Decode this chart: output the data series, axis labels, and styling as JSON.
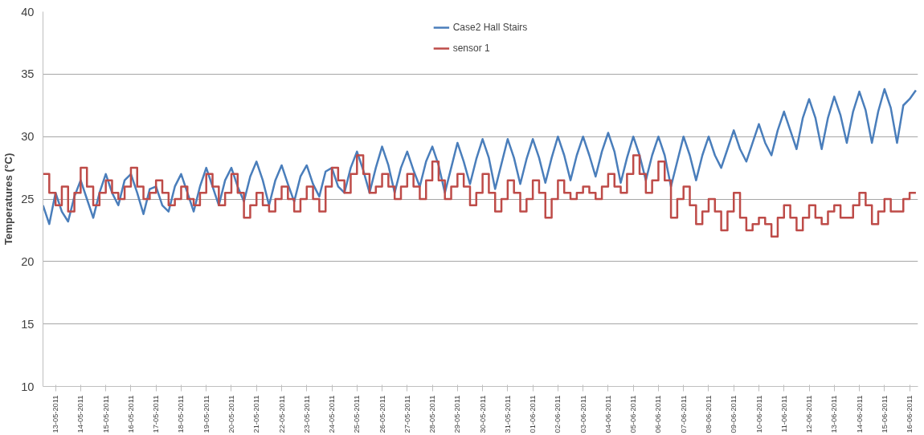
{
  "chart_data": {
    "type": "line",
    "ylabel": "Temperatures (°C)",
    "ylim": [
      10,
      40
    ],
    "yticks": [
      10,
      15,
      20,
      25,
      30,
      35,
      40
    ],
    "xlim": [
      "2011-05-13T00:00",
      "2011-06-16T20:00"
    ],
    "xticks": [
      {
        "value": "2011-05-13T12:00",
        "label": "13-05-2011"
      },
      {
        "value": "2011-05-14T12:00",
        "label": "14-05-2011"
      },
      {
        "value": "2011-05-15T12:00",
        "label": "15-05-2011"
      },
      {
        "value": "2011-05-16T12:00",
        "label": "16-05-2011"
      },
      {
        "value": "2011-05-17T12:00",
        "label": "17-05-2011"
      },
      {
        "value": "2011-05-18T12:00",
        "label": "18-05-2011"
      },
      {
        "value": "2011-05-19T12:00",
        "label": "19-05-2011"
      },
      {
        "value": "2011-05-20T12:00",
        "label": "20-05-2011"
      },
      {
        "value": "2011-05-21T12:00",
        "label": "21-05-2011"
      },
      {
        "value": "2011-05-22T12:00",
        "label": "22-05-2011"
      },
      {
        "value": "2011-05-23T12:00",
        "label": "23-05-2011"
      },
      {
        "value": "2011-05-24T12:00",
        "label": "24-05-2011"
      },
      {
        "value": "2011-05-25T12:00",
        "label": "25-05-2011"
      },
      {
        "value": "2011-05-26T12:00",
        "label": "26-05-2011"
      },
      {
        "value": "2011-05-27T12:00",
        "label": "27-05-2011"
      },
      {
        "value": "2011-05-28T12:00",
        "label": "28-05-2011"
      },
      {
        "value": "2011-05-29T12:00",
        "label": "29-05-2011"
      },
      {
        "value": "2011-05-30T12:00",
        "label": "30-05-2011"
      },
      {
        "value": "2011-05-31T12:00",
        "label": "31-05-2011"
      },
      {
        "value": "2011-06-01T12:00",
        "label": "01-06-2011"
      },
      {
        "value": "2011-06-02T12:00",
        "label": "02-06-2011"
      },
      {
        "value": "2011-06-03T12:00",
        "label": "03-06-2011"
      },
      {
        "value": "2011-06-04T12:00",
        "label": "04-06-2011"
      },
      {
        "value": "2011-06-05T12:00",
        "label": "05-06-2011"
      },
      {
        "value": "2011-06-06T12:00",
        "label": "06-06-2011"
      },
      {
        "value": "2011-06-07T12:00",
        "label": "07-06-2011"
      },
      {
        "value": "2011-06-08T12:00",
        "label": "08-06-2011"
      },
      {
        "value": "2011-06-09T12:00",
        "label": "09-06-2011"
      },
      {
        "value": "2011-06-10T12:00",
        "label": "10-06-2011"
      },
      {
        "value": "2011-06-11T12:00",
        "label": "11-06-2011"
      },
      {
        "value": "2011-06-12T12:00",
        "label": "12-06-2011"
      },
      {
        "value": "2011-06-13T12:00",
        "label": "13-06-2011"
      },
      {
        "value": "2011-06-14T12:00",
        "label": "14-06-2011"
      },
      {
        "value": "2011-06-15T12:00",
        "label": "15-06-2011"
      },
      {
        "value": "2011-06-16T12:00",
        "label": "16-06-2011"
      }
    ],
    "x": [
      "2011-05-13T00:00",
      "2011-05-13T06:00",
      "2011-05-13T12:00",
      "2011-05-13T18:00",
      "2011-05-14T00:00",
      "2011-05-14T06:00",
      "2011-05-14T12:00",
      "2011-05-14T18:00",
      "2011-05-15T00:00",
      "2011-05-15T06:00",
      "2011-05-15T12:00",
      "2011-05-15T18:00",
      "2011-05-16T00:00",
      "2011-05-16T06:00",
      "2011-05-16T12:00",
      "2011-05-16T18:00",
      "2011-05-17T00:00",
      "2011-05-17T06:00",
      "2011-05-17T12:00",
      "2011-05-17T18:00",
      "2011-05-18T00:00",
      "2011-05-18T06:00",
      "2011-05-18T12:00",
      "2011-05-18T18:00",
      "2011-05-19T00:00",
      "2011-05-19T06:00",
      "2011-05-19T12:00",
      "2011-05-19T18:00",
      "2011-05-20T00:00",
      "2011-05-20T06:00",
      "2011-05-20T12:00",
      "2011-05-20T18:00",
      "2011-05-21T00:00",
      "2011-05-21T06:00",
      "2011-05-21T12:00",
      "2011-05-21T18:00",
      "2011-05-22T00:00",
      "2011-05-22T06:00",
      "2011-05-22T12:00",
      "2011-05-22T18:00",
      "2011-05-23T00:00",
      "2011-05-23T06:00",
      "2011-05-23T12:00",
      "2011-05-23T18:00",
      "2011-05-24T00:00",
      "2011-05-24T06:00",
      "2011-05-24T12:00",
      "2011-05-24T18:00",
      "2011-05-25T00:00",
      "2011-05-25T06:00",
      "2011-05-25T12:00",
      "2011-05-25T18:00",
      "2011-05-26T00:00",
      "2011-05-26T06:00",
      "2011-05-26T12:00",
      "2011-05-26T18:00",
      "2011-05-27T00:00",
      "2011-05-27T06:00",
      "2011-05-27T12:00",
      "2011-05-27T18:00",
      "2011-05-28T00:00",
      "2011-05-28T06:00",
      "2011-05-28T12:00",
      "2011-05-28T18:00",
      "2011-05-29T00:00",
      "2011-05-29T06:00",
      "2011-05-29T12:00",
      "2011-05-29T18:00",
      "2011-05-30T00:00",
      "2011-05-30T06:00",
      "2011-05-30T12:00",
      "2011-05-30T18:00",
      "2011-05-31T00:00",
      "2011-05-31T06:00",
      "2011-05-31T12:00",
      "2011-05-31T18:00",
      "2011-06-01T00:00",
      "2011-06-01T06:00",
      "2011-06-01T12:00",
      "2011-06-01T18:00",
      "2011-06-02T00:00",
      "2011-06-02T06:00",
      "2011-06-02T12:00",
      "2011-06-02T18:00",
      "2011-06-03T00:00",
      "2011-06-03T06:00",
      "2011-06-03T12:00",
      "2011-06-03T18:00",
      "2011-06-04T00:00",
      "2011-06-04T06:00",
      "2011-06-04T12:00",
      "2011-06-04T18:00",
      "2011-06-05T00:00",
      "2011-06-05T06:00",
      "2011-06-05T12:00",
      "2011-06-05T18:00",
      "2011-06-06T00:00",
      "2011-06-06T06:00",
      "2011-06-06T12:00",
      "2011-06-06T18:00",
      "2011-06-07T00:00",
      "2011-06-07T06:00",
      "2011-06-07T12:00",
      "2011-06-07T18:00",
      "2011-06-08T00:00",
      "2011-06-08T06:00",
      "2011-06-08T12:00",
      "2011-06-08T18:00",
      "2011-06-09T00:00",
      "2011-06-09T06:00",
      "2011-06-09T12:00",
      "2011-06-09T18:00",
      "2011-06-10T00:00",
      "2011-06-10T06:00",
      "2011-06-10T12:00",
      "2011-06-10T18:00",
      "2011-06-11T00:00",
      "2011-06-11T06:00",
      "2011-06-11T12:00",
      "2011-06-11T18:00",
      "2011-06-12T00:00",
      "2011-06-12T06:00",
      "2011-06-12T12:00",
      "2011-06-12T18:00",
      "2011-06-13T00:00",
      "2011-06-13T06:00",
      "2011-06-13T12:00",
      "2011-06-13T18:00",
      "2011-06-14T00:00",
      "2011-06-14T06:00",
      "2011-06-14T12:00",
      "2011-06-14T18:00",
      "2011-06-15T00:00",
      "2011-06-15T06:00",
      "2011-06-15T12:00",
      "2011-06-15T18:00",
      "2011-06-16T00:00",
      "2011-06-16T06:00",
      "2011-06-16T12:00",
      "2011-06-16T18:00"
    ],
    "series": [
      {
        "name": "Case2 Hall Stairs",
        "color": "#4a7ebb",
        "values": [
          24.5,
          23.0,
          25.5,
          24.0,
          23.2,
          25.2,
          26.5,
          25.0,
          23.5,
          25.5,
          27.0,
          25.5,
          24.5,
          26.5,
          27.0,
          25.5,
          23.8,
          25.8,
          26.0,
          24.5,
          24.0,
          26.0,
          27.0,
          25.5,
          24.0,
          26.0,
          27.5,
          26.0,
          24.5,
          26.5,
          27.5,
          26.0,
          24.8,
          26.8,
          28.0,
          26.5,
          24.5,
          26.5,
          27.7,
          26.2,
          24.8,
          26.8,
          27.7,
          26.2,
          25.2,
          27.2,
          27.5,
          26.0,
          25.5,
          27.5,
          28.8,
          27.3,
          25.5,
          27.5,
          29.2,
          27.7,
          25.5,
          27.5,
          28.8,
          27.3,
          26.0,
          28.0,
          29.2,
          27.7,
          25.5,
          27.5,
          29.5,
          28.0,
          26.2,
          28.2,
          29.8,
          28.3,
          25.8,
          27.8,
          29.8,
          28.3,
          26.2,
          28.2,
          29.8,
          28.3,
          26.3,
          28.3,
          30.0,
          28.5,
          26.5,
          28.5,
          30.0,
          28.5,
          26.8,
          28.8,
          30.3,
          28.8,
          26.3,
          28.3,
          30.0,
          28.5,
          26.5,
          28.5,
          30.0,
          28.5,
          26.0,
          28.0,
          30.0,
          28.5,
          26.5,
          28.5,
          30.0,
          28.5,
          27.5,
          29.0,
          30.5,
          29.0,
          28.0,
          29.5,
          31.0,
          29.5,
          28.5,
          30.5,
          32.0,
          30.5,
          29.0,
          31.5,
          33.0,
          31.5,
          29.0,
          31.5,
          33.2,
          31.7,
          29.5,
          32.0,
          33.6,
          32.1,
          29.5,
          32.0,
          33.8,
          32.3,
          29.5,
          32.5,
          33.0,
          33.7
        ]
      },
      {
        "name": "sensor 1",
        "color": "#be4b48",
        "type": "step",
        "values": [
          27.0,
          25.5,
          24.5,
          26.0,
          24.0,
          25.5,
          27.5,
          26.0,
          24.5,
          25.5,
          26.5,
          25.5,
          25.0,
          26.0,
          27.5,
          26.0,
          25.0,
          25.5,
          26.5,
          25.5,
          24.5,
          25.0,
          26.0,
          25.0,
          24.5,
          25.5,
          27.0,
          26.0,
          24.5,
          25.5,
          27.0,
          25.5,
          23.5,
          24.5,
          25.5,
          24.5,
          24.0,
          25.0,
          26.0,
          25.0,
          24.0,
          25.0,
          26.0,
          25.0,
          24.0,
          26.0,
          27.5,
          26.5,
          25.5,
          27.0,
          28.5,
          27.0,
          25.5,
          26.0,
          27.0,
          26.0,
          25.0,
          26.0,
          27.0,
          26.0,
          25.0,
          26.5,
          28.0,
          26.5,
          25.0,
          26.0,
          27.0,
          26.0,
          24.5,
          25.5,
          27.0,
          25.5,
          24.0,
          25.0,
          26.5,
          25.5,
          24.0,
          25.0,
          26.5,
          25.5,
          23.5,
          25.0,
          26.5,
          25.5,
          25.0,
          25.5,
          26.0,
          25.5,
          25.0,
          26.0,
          27.0,
          26.0,
          25.5,
          27.0,
          28.5,
          27.0,
          25.5,
          26.5,
          28.0,
          26.5,
          23.5,
          25.0,
          26.0,
          24.5,
          23.0,
          24.0,
          25.0,
          24.0,
          22.5,
          24.0,
          25.5,
          23.5,
          22.5,
          23.0,
          23.5,
          23.0,
          22.0,
          23.5,
          24.5,
          23.5,
          22.5,
          23.5,
          24.5,
          23.5,
          23.0,
          24.0,
          24.5,
          23.5,
          23.5,
          24.5,
          25.5,
          24.5,
          23.0,
          24.0,
          25.0,
          24.0,
          24.0,
          25.0,
          25.5,
          25.5
        ]
      }
    ],
    "grid": "y",
    "legend": "top"
  }
}
